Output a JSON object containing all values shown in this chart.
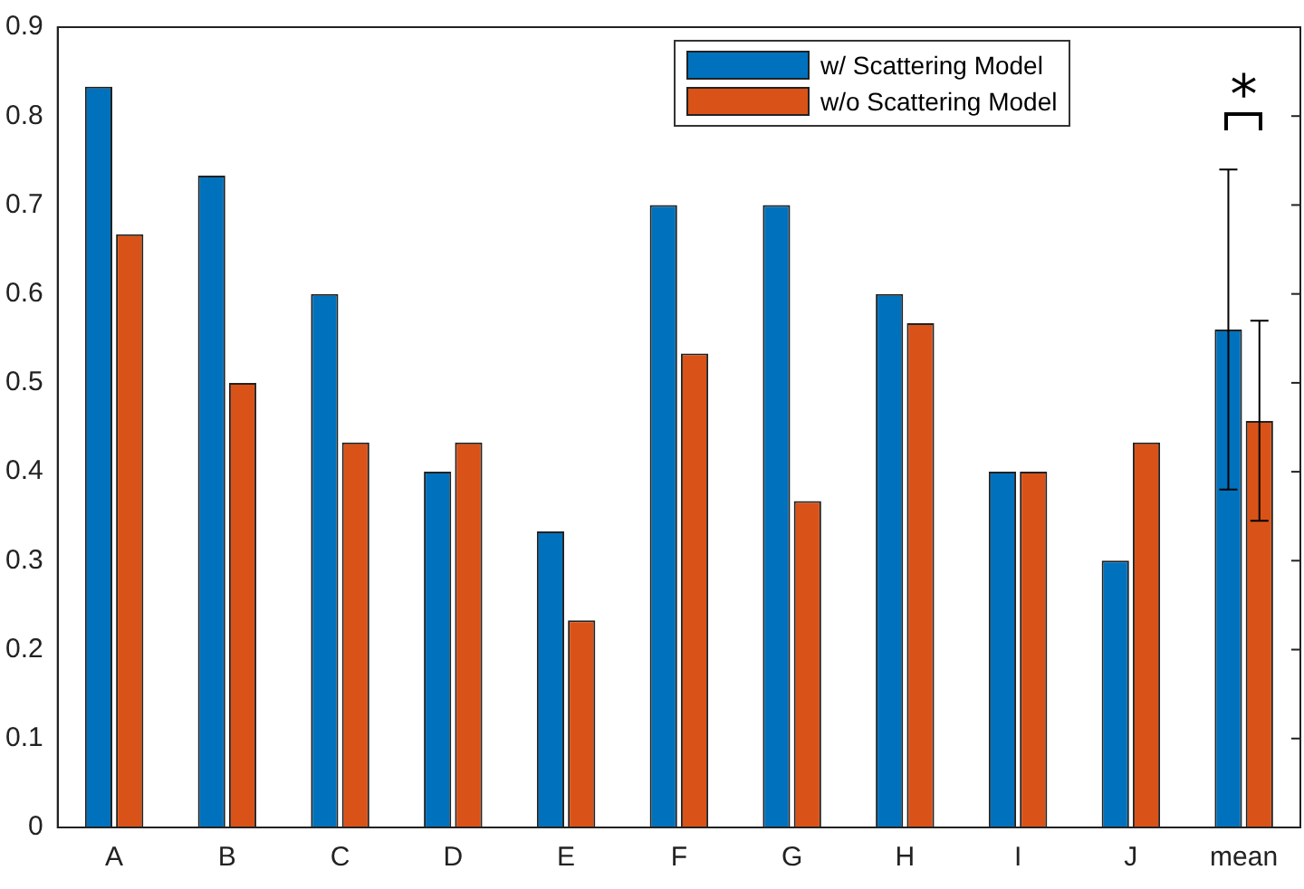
{
  "chart_data": {
    "type": "bar",
    "categories": [
      "A",
      "B",
      "C",
      "D",
      "E",
      "F",
      "G",
      "H",
      "I",
      "J",
      "mean"
    ],
    "series": [
      {
        "name": "w/ Scattering Model",
        "color": "#0072bd",
        "values": [
          0.833,
          0.733,
          0.6,
          0.4,
          0.333,
          0.7,
          0.7,
          0.6,
          0.4,
          0.3,
          0.56
        ],
        "errors": [
          null,
          null,
          null,
          null,
          null,
          null,
          null,
          null,
          null,
          null,
          [
            0.38,
            0.74
          ]
        ]
      },
      {
        "name": "w/o Scattering Model",
        "color": "#d95319",
        "values": [
          0.667,
          0.5,
          0.433,
          0.433,
          0.233,
          0.533,
          0.367,
          0.567,
          0.4,
          0.433,
          0.457
        ],
        "errors": [
          null,
          null,
          null,
          null,
          null,
          null,
          null,
          null,
          null,
          null,
          [
            0.345,
            0.57
          ]
        ]
      }
    ],
    "ylim": [
      0,
      0.9
    ],
    "yticks": [
      0,
      0.1,
      0.2,
      0.3,
      0.4,
      0.5,
      0.6,
      0.7,
      0.8,
      0.9
    ],
    "grid": false,
    "legend": "top right",
    "annotations": [
      "*"
    ]
  }
}
